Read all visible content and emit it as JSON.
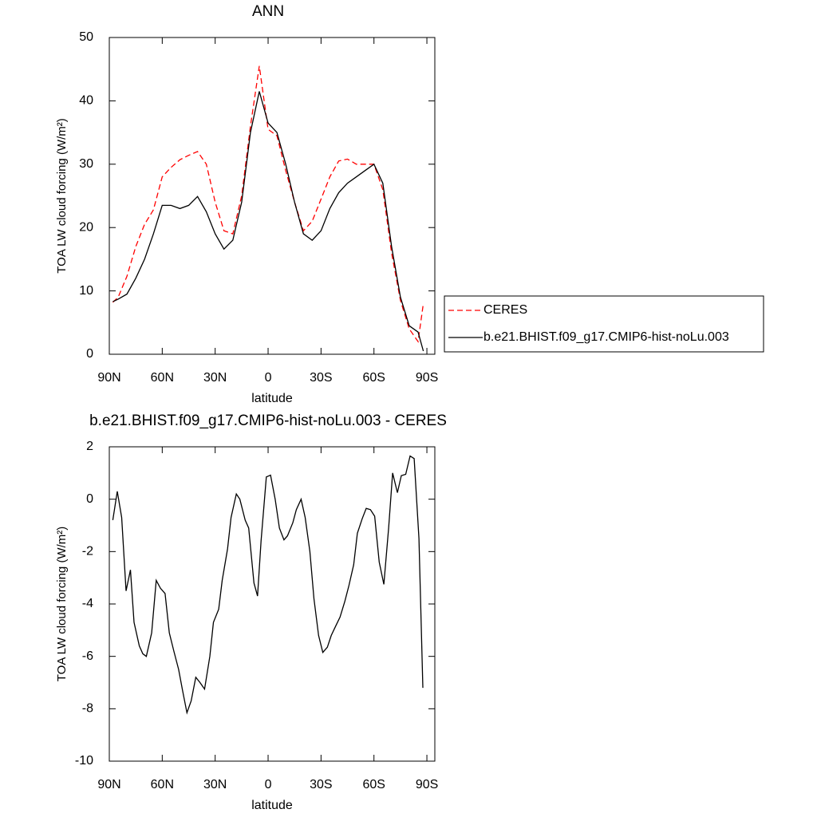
{
  "chart_data": [
    {
      "type": "line",
      "title": "ANN",
      "x_label": "latitude",
      "y_label": "TOA LW cloud forcing (W/m²)",
      "x": [
        88,
        85,
        80,
        75,
        70,
        65,
        60,
        55,
        50,
        45,
        40,
        35,
        30,
        25,
        20,
        15,
        10,
        5,
        0,
        -5,
        -10,
        -15,
        -20,
        -25,
        -30,
        -35,
        -40,
        -45,
        -50,
        -55,
        -60,
        -65,
        -70,
        -75,
        -80,
        -85,
        -88
      ],
      "series": [
        {
          "name": "CERES",
          "color": "#ff0000",
          "style": "dashed",
          "values": [
            8.2,
            9,
            12.3,
            17,
            20.5,
            22.8,
            28,
            29.5,
            30.7,
            31.4,
            32,
            30,
            24,
            19.5,
            19,
            25,
            36,
            45.5,
            35.5,
            34.5,
            29,
            24,
            19.5,
            21,
            24.5,
            28,
            30.5,
            30.8,
            30,
            30,
            30,
            26,
            16,
            8.5,
            4,
            2,
            8
          ]
        },
        {
          "name": "b.e21.BHIST.f09_g17.CMIP6-hist-noLu.003",
          "color": "#000000",
          "style": "solid",
          "values": [
            8.3,
            8.7,
            9.5,
            12,
            15,
            19,
            23.5,
            23.5,
            23,
            23.5,
            24.9,
            22.5,
            19,
            16.6,
            18,
            24,
            35,
            41.5,
            36.5,
            35,
            30,
            24,
            19,
            18,
            19.5,
            23,
            25.5,
            27,
            28,
            29,
            30,
            27,
            17,
            9,
            4.5,
            3.5,
            0.5
          ]
        }
      ],
      "xlim": [
        90,
        -94.5
      ],
      "xticks": [
        {
          "value": 90,
          "label": "90N"
        },
        {
          "value": 60,
          "label": "60N"
        },
        {
          "value": 30,
          "label": "30N"
        },
        0,
        {
          "value": -30,
          "label": "30S"
        },
        {
          "value": -60,
          "label": "60S"
        },
        {
          "value": -90,
          "label": "90S"
        }
      ],
      "ylim": [
        0,
        50
      ],
      "yticks": [
        0,
        10,
        20,
        30,
        40,
        50
      ],
      "legend": "right"
    },
    {
      "type": "line",
      "title": "b.e21.BHIST.f09_g17.CMIP6-hist-noLu.003 - CERES",
      "x_label": "latitude",
      "y_label": "TOA LW cloud forcing (W/m²)",
      "x": [
        88,
        85.5,
        83,
        80.5,
        78,
        76,
        73,
        71,
        69,
        66,
        63.4,
        61,
        58.4,
        56,
        53.4,
        50.7,
        48.5,
        46,
        43.6,
        41,
        38.6,
        36,
        33,
        31,
        28,
        26,
        23,
        21,
        18,
        16,
        13,
        11,
        8,
        6,
        4,
        1,
        -1.4,
        -4,
        -6.4,
        -9,
        -11,
        -14,
        -16,
        -18.7,
        -21,
        -23.7,
        -26,
        -28.6,
        -31,
        -33.6,
        -35.8,
        -38.6,
        -40.8,
        -43.5,
        -45.8,
        -48.5,
        -50.6,
        -53.3,
        -55.6,
        -58,
        -60.4,
        -63,
        -65.6,
        -68.3,
        -70.6,
        -73.3,
        -75.5,
        -78,
        -80.5,
        -82.8,
        -85.5,
        -87.7
      ],
      "values": [
        -0.8,
        0.3,
        -0.7,
        -3.5,
        -2.7,
        -4.7,
        -5.6,
        -5.9,
        -6.0,
        -5.1,
        -3.1,
        -3.4,
        -3.6,
        -5.1,
        -5.8,
        -6.5,
        -7.3,
        -8.15,
        -7.7,
        -6.8,
        -7.0,
        -7.25,
        -6.0,
        -4.7,
        -4.2,
        -3.1,
        -1.9,
        -0.7,
        0.2,
        0.0,
        -0.8,
        -1.1,
        -3.2,
        -3.7,
        -1.6,
        0.85,
        0.92,
        0,
        -1.1,
        -1.55,
        -1.4,
        -0.9,
        -0.4,
        0,
        -0.7,
        -2.0,
        -3.8,
        -5.2,
        -5.85,
        -5.65,
        -5.2,
        -4.8,
        -4.5,
        -3.9,
        -3.3,
        -2.5,
        -1.3,
        -0.75,
        -0.35,
        -0.4,
        -0.65,
        -2.4,
        -3.25,
        -1.1,
        1.0,
        0.25,
        0.9,
        0.95,
        1.65,
        1.55,
        -1.5,
        -7.2
      ],
      "color": "#000000",
      "xlim": [
        90,
        -94.5
      ],
      "xticks": [
        {
          "value": 90,
          "label": "90N"
        },
        {
          "value": 60,
          "label": "60N"
        },
        {
          "value": 30,
          "label": "30N"
        },
        0,
        {
          "value": -30,
          "label": "30S"
        },
        {
          "value": -60,
          "label": "60S"
        },
        {
          "value": -90,
          "label": "90S"
        }
      ],
      "ylim": [
        -10,
        2
      ],
      "yticks": [
        -10,
        -8,
        -6,
        -4,
        -2,
        0,
        2
      ]
    }
  ]
}
